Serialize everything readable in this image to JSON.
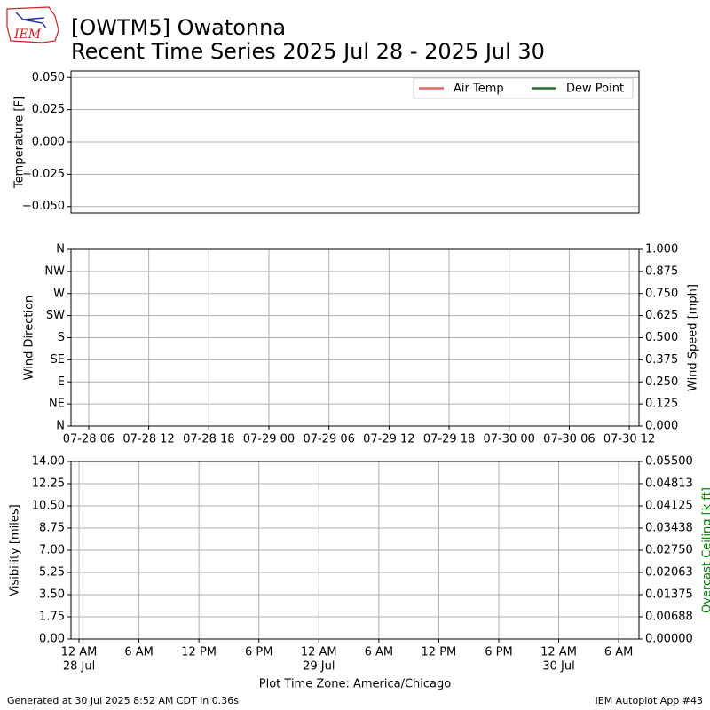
{
  "header": {
    "title": "[OWTM5] Owatonna",
    "subtitle": "Recent Time Series 2025 Jul 28 - 2025 Jul 30",
    "logo": "IEM"
  },
  "footer": {
    "generated": "Generated at 30 Jul 2025 8:52 AM CDT in 0.36s",
    "app": "IEM Autoplot App #43"
  },
  "chart_data": [
    {
      "type": "line",
      "ylabel": "Temperature [F]",
      "grid": "y",
      "legend": "upper right",
      "x": [],
      "series": [
        {
          "name": "Air Temp",
          "color": "#e06666",
          "values": []
        },
        {
          "name": "Dew Point",
          "color": "#2e6b2e",
          "values": []
        }
      ],
      "ylim": [
        -0.055,
        0.055
      ],
      "yticks": [
        {
          "value": 0.05,
          "label": "0.050"
        },
        {
          "value": 0.025,
          "label": "0.025"
        },
        {
          "value": 0,
          "label": "0.000"
        },
        {
          "value": -0.025,
          "label": "−0.025"
        },
        {
          "value": -0.05,
          "label": "−0.050"
        }
      ]
    },
    {
      "type": "line",
      "ylabel": "Wind Direction",
      "y2label": "Wind Speed [mph]",
      "grid": "both",
      "xlim": [
        "2025-07-28T04:14",
        "2025-07-30T12:58"
      ],
      "xticks": [
        {
          "value": "2025-07-28T06:00",
          "label": "07-28 06"
        },
        {
          "value": "2025-07-28T12:00",
          "label": "07-28 12"
        },
        {
          "value": "2025-07-28T18:00",
          "label": "07-28 18"
        },
        {
          "value": "2025-07-29T00:00",
          "label": "07-29 00"
        },
        {
          "value": "2025-07-29T06:00",
          "label": "07-29 06"
        },
        {
          "value": "2025-07-29T12:00",
          "label": "07-29 12"
        },
        {
          "value": "2025-07-29T18:00",
          "label": "07-29 18"
        },
        {
          "value": "2025-07-30T00:00",
          "label": "07-30 00"
        },
        {
          "value": "2025-07-30T06:00",
          "label": "07-30 06"
        },
        {
          "value": "2025-07-30T12:00",
          "label": "07-30 12"
        }
      ],
      "ylim": [
        0,
        360
      ],
      "yticks": [
        {
          "value": 360,
          "label": "N"
        },
        {
          "value": 315,
          "label": "NW"
        },
        {
          "value": 270,
          "label": "W"
        },
        {
          "value": 225,
          "label": "SW"
        },
        {
          "value": 180,
          "label": "S"
        },
        {
          "value": 135,
          "label": "SE"
        },
        {
          "value": 90,
          "label": "E"
        },
        {
          "value": 45,
          "label": "NE"
        },
        {
          "value": 0,
          "label": "N"
        }
      ],
      "y2lim": [
        0,
        1
      ],
      "y2ticks": [
        {
          "value": 1,
          "label": "1.000"
        },
        {
          "value": 0.875,
          "label": "0.875"
        },
        {
          "value": 0.75,
          "label": "0.750"
        },
        {
          "value": 0.625,
          "label": "0.625"
        },
        {
          "value": 0.5,
          "label": "0.500"
        },
        {
          "value": 0.375,
          "label": "0.375"
        },
        {
          "value": 0.25,
          "label": "0.250"
        },
        {
          "value": 0.125,
          "label": "0.125"
        },
        {
          "value": 0,
          "label": "0.000"
        }
      ]
    },
    {
      "type": "line",
      "ylabel": "Visibility [miles]",
      "y2label": "Overcast Ceiling [k ft]",
      "y2label_color": "#008000",
      "grid": "both",
      "xlabel": "Plot Time Zone: America/Chicago",
      "xlim": [
        "2025-07-27T23:12",
        "2025-07-30T08:02"
      ],
      "xticks": [
        {
          "value": "2025-07-28T00:00",
          "label": "12 AM",
          "date": "28 Jul"
        },
        {
          "value": "2025-07-28T06:00",
          "label": "6 AM"
        },
        {
          "value": "2025-07-28T12:00",
          "label": "12 PM"
        },
        {
          "value": "2025-07-28T18:00",
          "label": "6 PM"
        },
        {
          "value": "2025-07-29T00:00",
          "label": "12 AM",
          "date": "29 Jul"
        },
        {
          "value": "2025-07-29T06:00",
          "label": "6 AM"
        },
        {
          "value": "2025-07-29T12:00",
          "label": "12 PM"
        },
        {
          "value": "2025-07-29T18:00",
          "label": "6 PM"
        },
        {
          "value": "2025-07-30T00:00",
          "label": "12 AM",
          "date": "30 Jul"
        },
        {
          "value": "2025-07-30T06:00",
          "label": "6 AM"
        }
      ],
      "ylim": [
        0,
        14
      ],
      "yticks": [
        {
          "value": 14,
          "label": "14.00"
        },
        {
          "value": 12.25,
          "label": "12.25"
        },
        {
          "value": 10.5,
          "label": "10.50"
        },
        {
          "value": 8.75,
          "label": "8.75"
        },
        {
          "value": 7,
          "label": "7.00"
        },
        {
          "value": 5.25,
          "label": "5.25"
        },
        {
          "value": 3.5,
          "label": "3.50"
        },
        {
          "value": 1.75,
          "label": "1.75"
        },
        {
          "value": 0,
          "label": "0.00"
        }
      ],
      "y2lim": [
        0,
        0.055
      ],
      "y2ticks": [
        {
          "value": 0.055,
          "label": "0.05500"
        },
        {
          "value": 0.04813,
          "label": "0.04813"
        },
        {
          "value": 0.04125,
          "label": "0.04125"
        },
        {
          "value": 0.03438,
          "label": "0.03438"
        },
        {
          "value": 0.0275,
          "label": "0.02750"
        },
        {
          "value": 0.02063,
          "label": "0.02063"
        },
        {
          "value": 0.01375,
          "label": "0.01375"
        },
        {
          "value": 0.00688,
          "label": "0.00688"
        },
        {
          "value": 0,
          "label": "0.00000"
        }
      ]
    }
  ]
}
